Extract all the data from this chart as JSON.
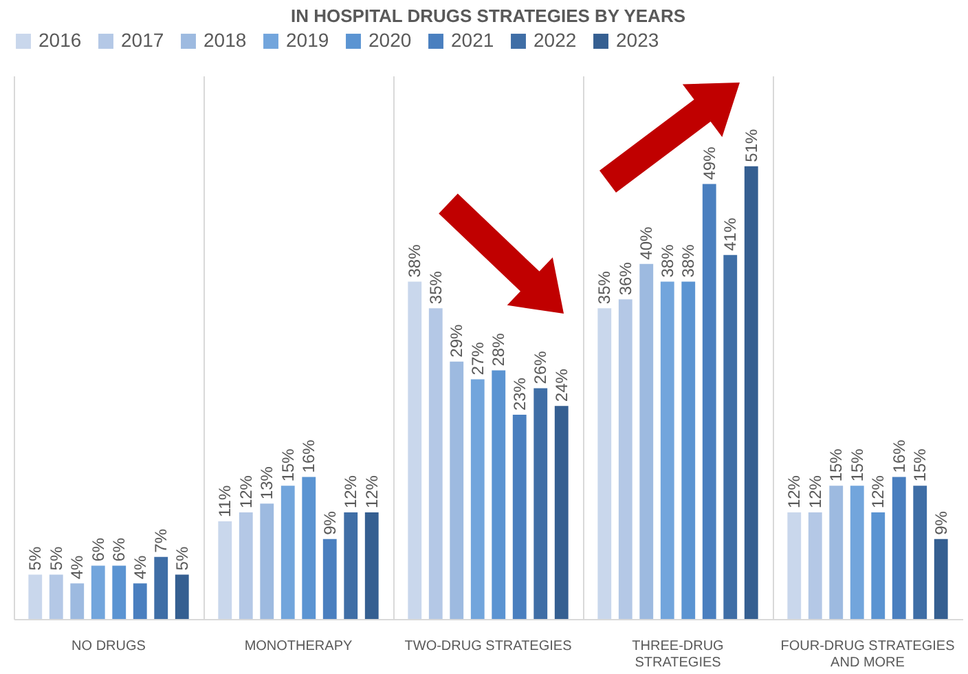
{
  "chart_data": {
    "type": "bar",
    "title": "IN HOSPITAL DRUGS STRATEGIES BY YEARS",
    "categories": [
      "NO DRUGS",
      "MONOTHERAPY",
      "TWO-DRUG STRATEGIES",
      "THREE-DRUG STRATEGIES",
      "FOUR-DRUG STRATEGIES AND MORE"
    ],
    "series": [
      {
        "name": "2016",
        "color": "#c9d7ec",
        "values": [
          5,
          11,
          38,
          35,
          12
        ],
        "value_labels": [
          "5%",
          "11%",
          "38%",
          "35%",
          "12%"
        ]
      },
      {
        "name": "2017",
        "color": "#b4c8e6",
        "values": [
          5,
          12,
          35,
          36,
          12
        ],
        "value_labels": [
          "5%",
          "12%",
          "35%",
          "36%",
          "12%"
        ]
      },
      {
        "name": "2018",
        "color": "#9dbae0",
        "values": [
          4,
          13,
          29,
          40,
          15
        ],
        "value_labels": [
          "4%",
          "13%",
          "29%",
          "40%",
          "15%"
        ]
      },
      {
        "name": "2019",
        "color": "#72a5dc",
        "values": [
          6,
          15,
          27,
          38,
          15
        ],
        "value_labels": [
          "6%",
          "15%",
          "27%",
          "38%",
          "15%"
        ]
      },
      {
        "name": "2020",
        "color": "#5b94d2",
        "values": [
          6,
          16,
          28,
          38,
          12
        ],
        "value_labels": [
          "6%",
          "16%",
          "28%",
          "38%",
          "12%"
        ]
      },
      {
        "name": "2021",
        "color": "#4a7fbf",
        "values": [
          4,
          9,
          23,
          49,
          16
        ],
        "value_labels": [
          "4%",
          "9%",
          "23%",
          "49%",
          "16%"
        ]
      },
      {
        "name": "2022",
        "color": "#3f6ea6",
        "values": [
          7,
          12,
          26,
          41,
          15
        ],
        "value_labels": [
          "7%",
          "12%",
          "26%",
          "41%",
          "15%"
        ]
      },
      {
        "name": "2023",
        "color": "#355f91",
        "values": [
          5,
          12,
          24,
          51,
          9
        ],
        "value_labels": [
          "5%",
          "12%",
          "24%",
          "51%",
          "9%"
        ]
      }
    ],
    "legend": "top",
    "grid": "x"
  }
}
